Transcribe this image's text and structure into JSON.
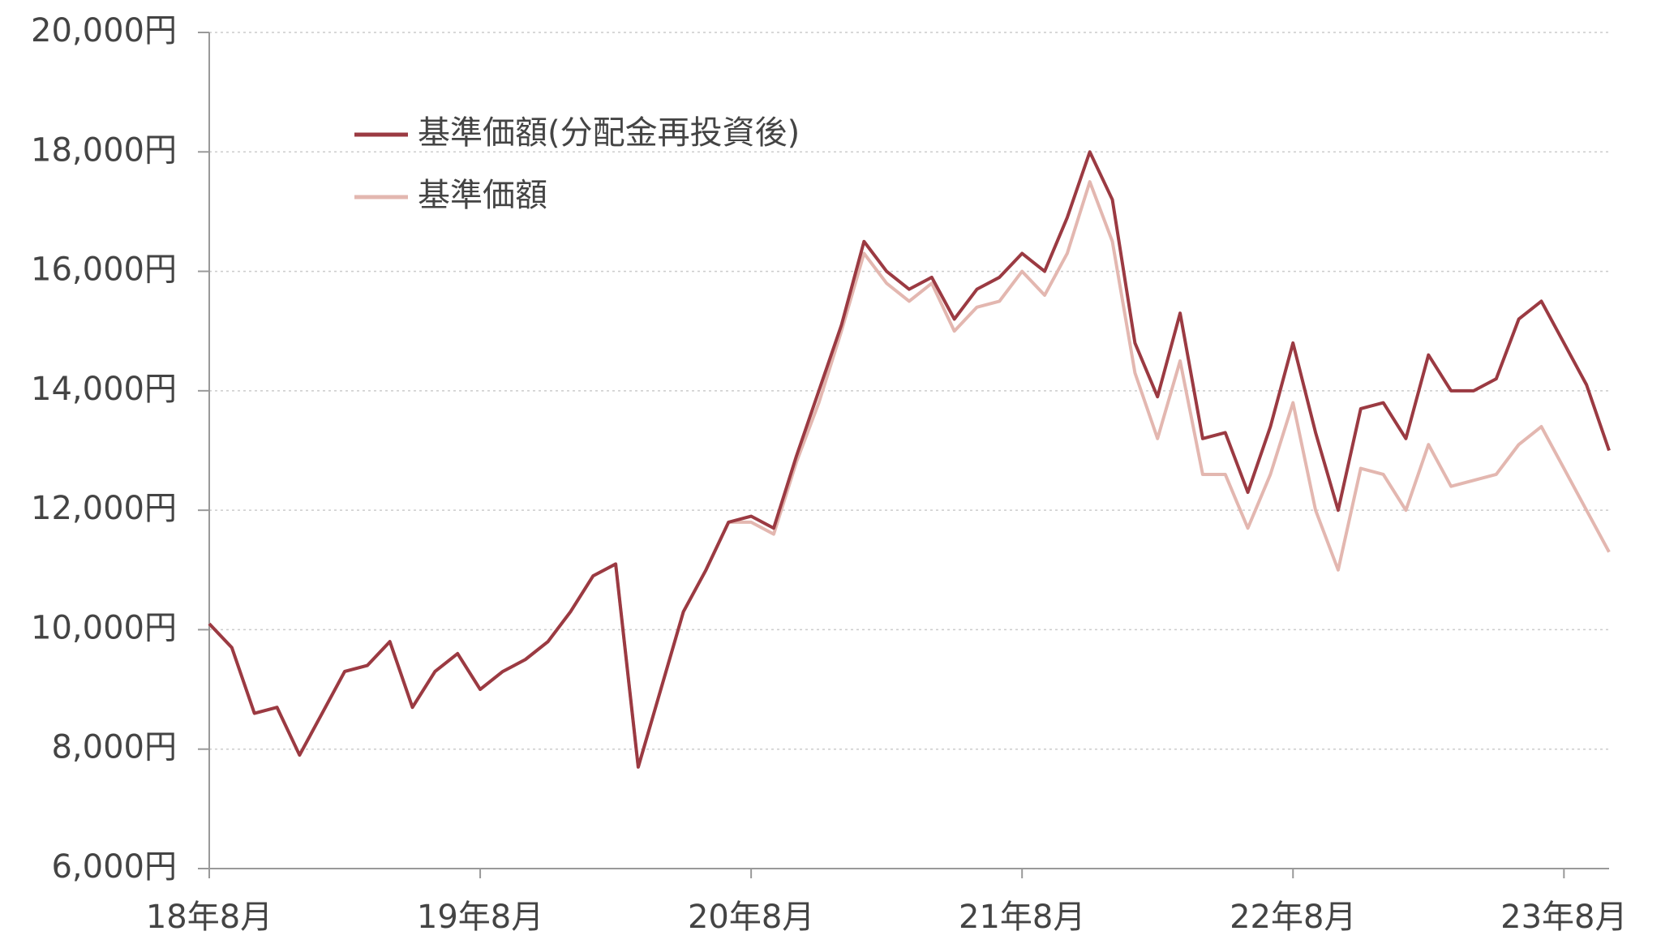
{
  "chart_data": {
    "type": "line",
    "categories": [
      "18年8月",
      null,
      null,
      null,
      null,
      null,
      null,
      null,
      null,
      null,
      null,
      null,
      "19年8月",
      null,
      null,
      null,
      null,
      null,
      null,
      null,
      null,
      null,
      null,
      null,
      "20年8月",
      null,
      null,
      null,
      null,
      null,
      null,
      null,
      null,
      null,
      null,
      null,
      "21年8月",
      null,
      null,
      null,
      null,
      null,
      null,
      null,
      null,
      null,
      null,
      null,
      "22年8月",
      null,
      null,
      null,
      null,
      null,
      null,
      null,
      null,
      null,
      null,
      null,
      "23年8月",
      null,
      null
    ],
    "series": [
      {
        "name": "基準価額(分配金再投資後)",
        "color": "#9b3a42",
        "values": [
          10100,
          9700,
          8600,
          8700,
          7900,
          8600,
          9300,
          9400,
          9800,
          8700,
          9300,
          9600,
          9000,
          9300,
          9500,
          9800,
          10300,
          10900,
          11100,
          7700,
          9000,
          10300,
          11000,
          11800,
          11900,
          11700,
          12900,
          14000,
          15100,
          16500,
          16000,
          15700,
          15900,
          15200,
          15700,
          15900,
          16300,
          16000,
          16900,
          18000,
          17200,
          14800,
          13900,
          15300,
          13200,
          13300,
          12300,
          13400,
          14800,
          13300,
          12000,
          13700,
          13800,
          13200,
          14600,
          14000,
          14000,
          14200,
          15200,
          15500,
          14800,
          14100,
          13000
        ]
      },
      {
        "name": "基準価額",
        "color": "#e3b7b0",
        "values": [
          10100,
          9700,
          8600,
          8700,
          7900,
          8600,
          9300,
          9400,
          9800,
          8700,
          9300,
          9600,
          9000,
          9300,
          9500,
          9800,
          10300,
          10900,
          11100,
          7700,
          9000,
          10300,
          11000,
          11800,
          11800,
          11600,
          12800,
          13800,
          15000,
          16300,
          15800,
          15500,
          15800,
          15000,
          15400,
          15500,
          16000,
          15600,
          16300,
          17500,
          16500,
          14300,
          13200,
          14500,
          12600,
          12600,
          11700,
          12600,
          13800,
          12000,
          11000,
          12700,
          12600,
          12000,
          13100,
          12400,
          12500,
          12600,
          13100,
          13400,
          12700,
          12000,
          11300
        ]
      }
    ],
    "ylim": [
      6000,
      20000
    ],
    "yticks": [
      {
        "value": 6000,
        "label": "6,000円"
      },
      {
        "value": 8000,
        "label": "8,000円"
      },
      {
        "value": 10000,
        "label": "10,000円"
      },
      {
        "value": 12000,
        "label": "12,000円"
      },
      {
        "value": 14000,
        "label": "14,000円"
      },
      {
        "value": 16000,
        "label": "16,000円"
      },
      {
        "value": 18000,
        "label": "18,000円"
      },
      {
        "value": 20000,
        "label": "20,000円"
      }
    ],
    "grid": true,
    "legend": "top-left"
  }
}
